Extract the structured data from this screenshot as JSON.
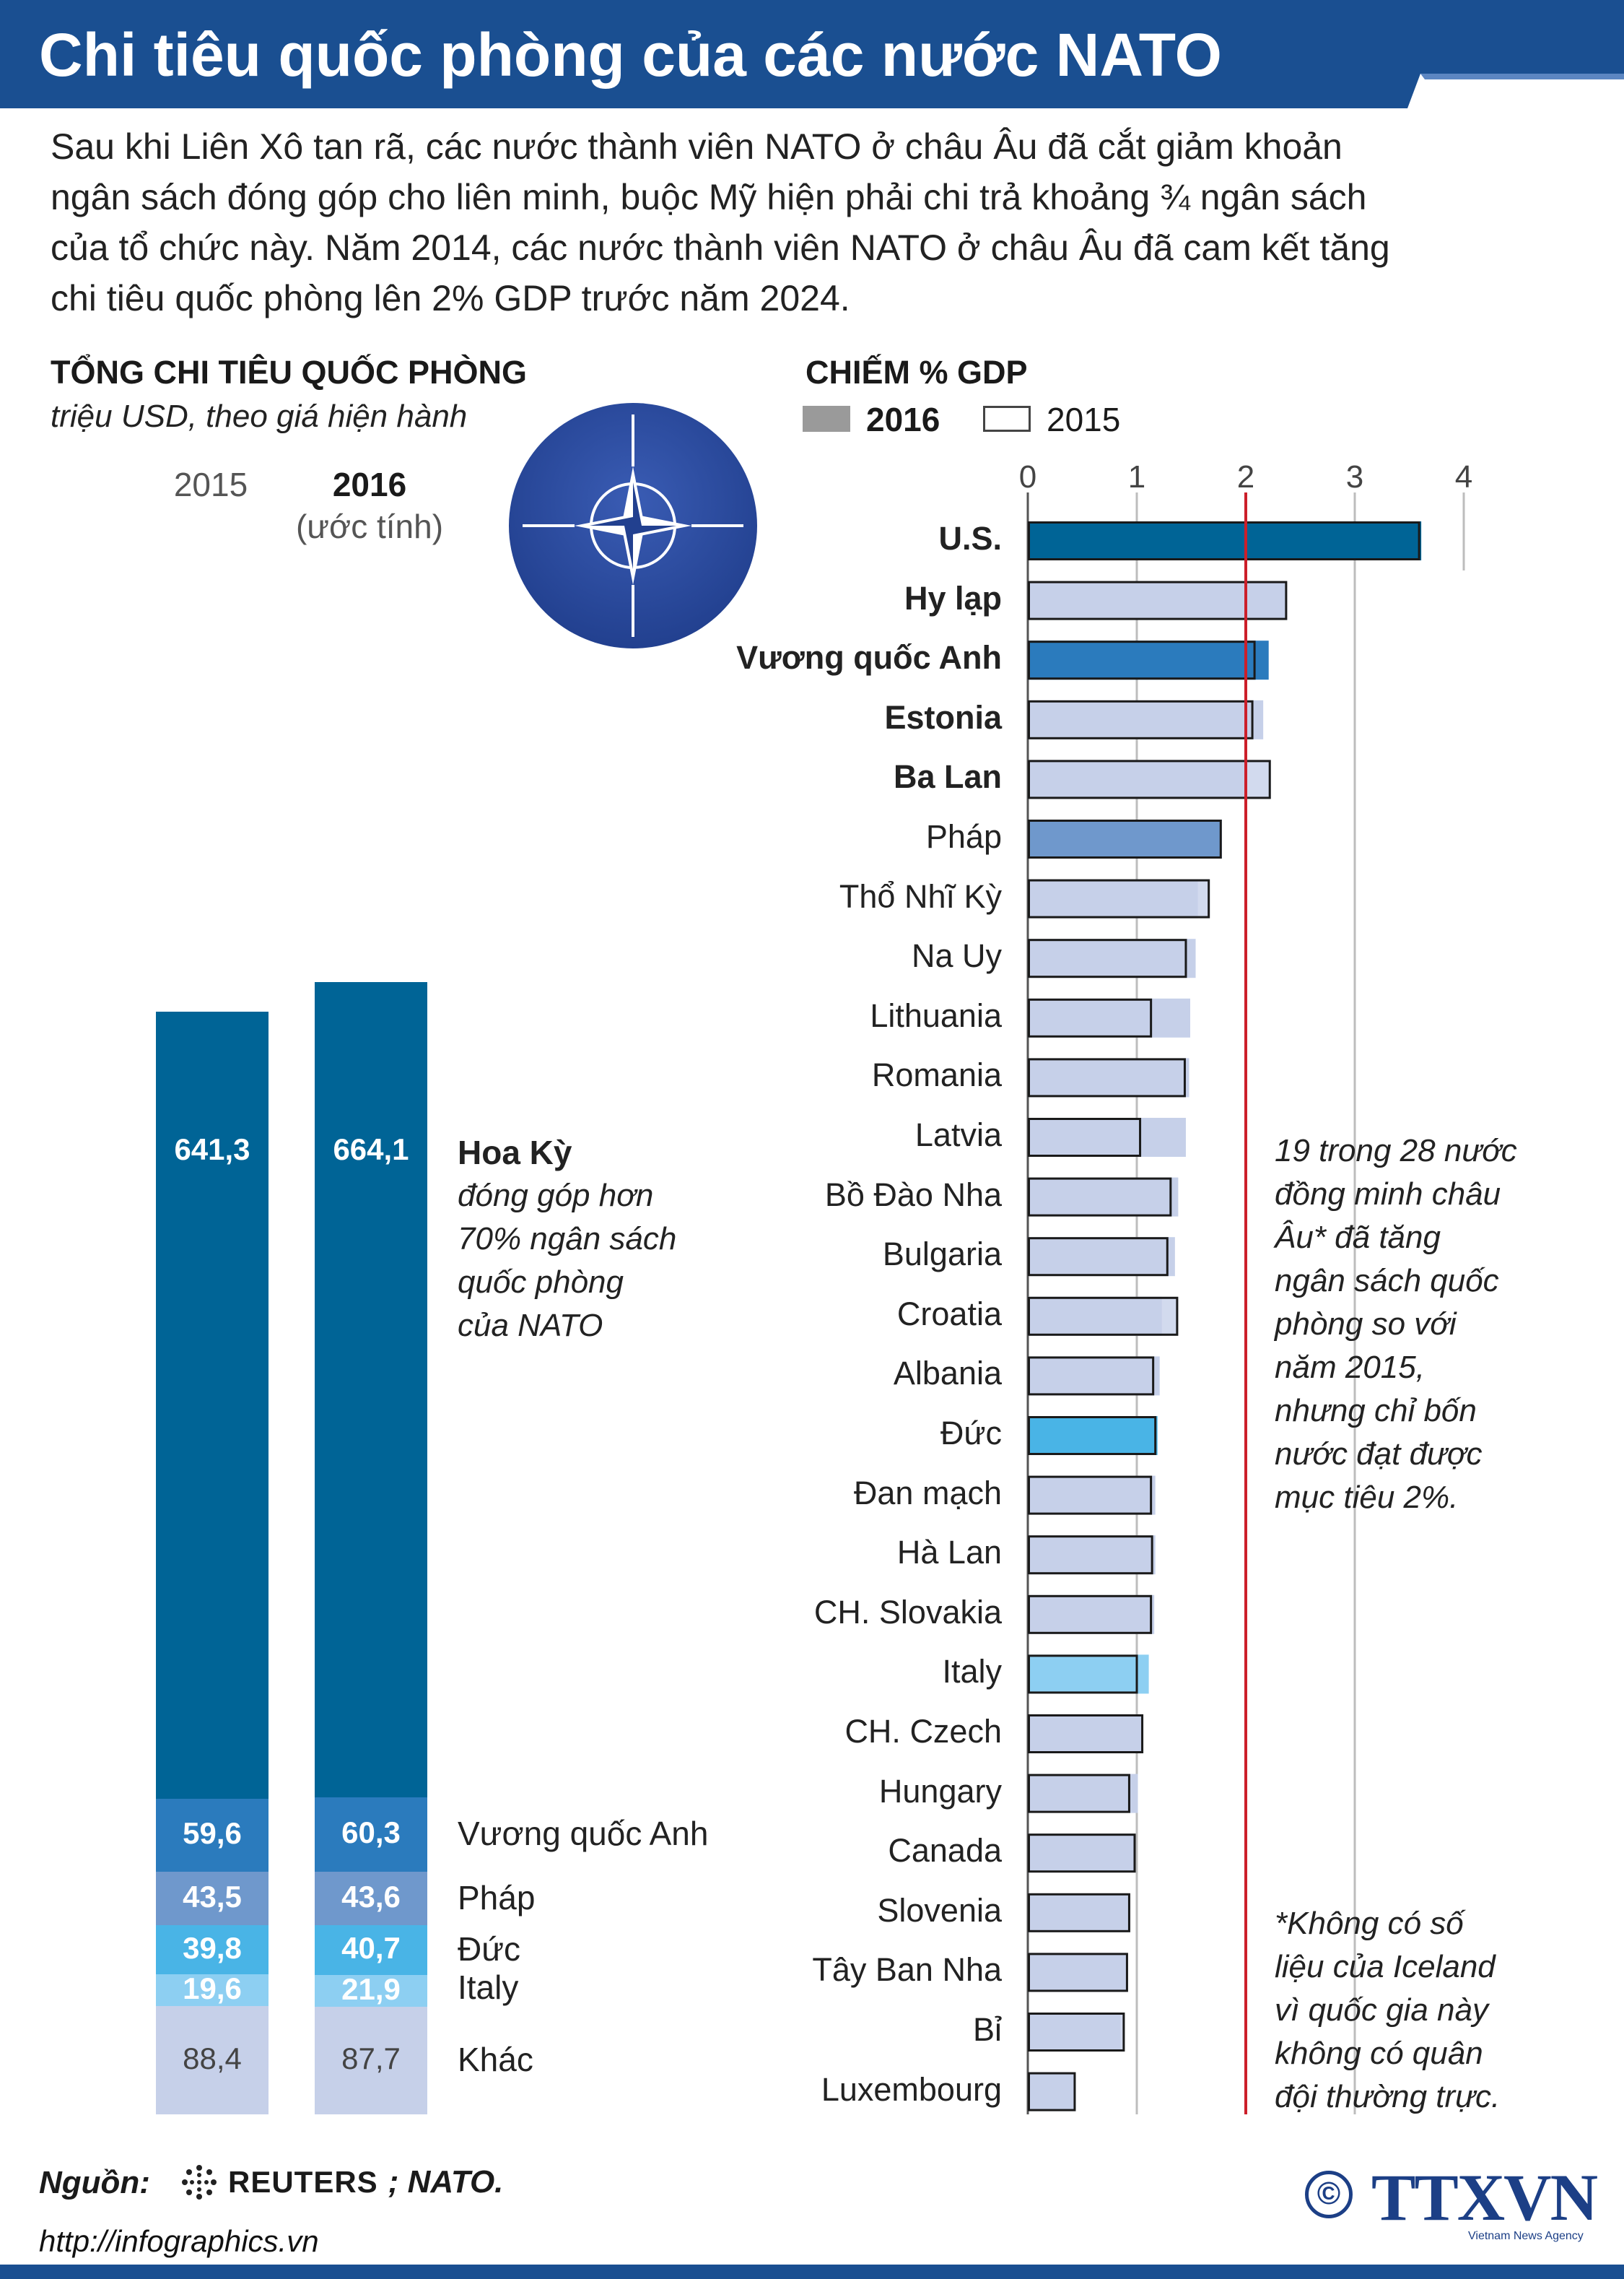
{
  "title": "Chi tiêu quốc phòng của các nước NATO",
  "intro_lines": [
    "Sau khi Liên Xô tan rã, các nước thành viên NATO ở châu Âu đã cắt giảm khoản",
    "ngân sách đóng góp cho liên minh, buộc Mỹ hiện phải chi trả khoảng ¾ ngân sách",
    "của tổ chức này. Năm 2014, các nước thành viên NATO ở châu Âu đã cam kết tăng",
    "chi tiêu quốc phòng lên 2% GDP trước năm 2024."
  ],
  "left_section": {
    "title": "TỔNG CHI TIÊU QUỐC PHÒNG",
    "subtitle": "triệu USD, theo giá hiện hành",
    "year_2015": "2015",
    "year_2016": "2016",
    "year_2016_note": "(ước tính)",
    "us_note_title": "Hoa Kỳ",
    "us_note_lines": [
      "đóng góp hơn",
      "70% ngân sách",
      "quốc phòng",
      "của NATO"
    ]
  },
  "right_section": {
    "title": "CHIẾM % GDP",
    "legend_2016": "2016",
    "legend_2015": "2015",
    "note_lines": [
      "19 trong 28 nước",
      "đồng minh châu",
      "Âu* đã tăng",
      "ngân sách quốc",
      "phòng so với",
      "năm 2015,",
      "nhưng chỉ bốn",
      "nước đạt được",
      "mục tiêu 2%."
    ],
    "footnote_lines": [
      "*Không có số",
      "liệu của Iceland",
      "vì quốc gia này",
      "không có quân",
      "đội thường trực."
    ]
  },
  "footer": {
    "source_label": "Nguồn:",
    "reuters": "REUTERS",
    "source_rest": "; NATO.",
    "url": "http://infographics.vn",
    "copyright": "©",
    "agency": "TTXVN",
    "agency_sub": "Vietnam News Agency"
  },
  "colors": {
    "title_band": "#1a4f91",
    "us_dark": "#006496",
    "uk": "#2b7bbd",
    "france": "#6f98cc",
    "germany": "#49b4e6",
    "italy": "#8dcff2",
    "other": "#c6d0e9",
    "target_line": "#cc1f2a",
    "ttxvn": "#1c3f86"
  },
  "chart_data": [
    {
      "type": "bar",
      "stacked": true,
      "title": "TỔNG CHI TIÊU QUỐC PHÒNG",
      "subtitle": "triệu USD, theo giá hiện hành",
      "categories": [
        "2015",
        "2016"
      ],
      "series": [
        {
          "name": "Hoa Kỳ",
          "values": [
            641.3,
            664.1
          ],
          "labels": [
            "641,3",
            "664,1"
          ],
          "color_key": "us_dark"
        },
        {
          "name": "Vương quốc Anh",
          "values": [
            59.6,
            60.3
          ],
          "labels": [
            "59,6",
            "60,3"
          ],
          "color_key": "uk"
        },
        {
          "name": "Pháp",
          "values": [
            43.5,
            43.6
          ],
          "labels": [
            "43,5",
            "43,6"
          ],
          "color_key": "france"
        },
        {
          "name": "Đức",
          "values": [
            39.8,
            40.7
          ],
          "labels": [
            "39,8",
            "40,7"
          ],
          "color_key": "germany"
        },
        {
          "name": "Italy",
          "values": [
            19.6,
            21.9
          ],
          "labels": [
            "19,6",
            "21,9"
          ],
          "color_key": "italy"
        },
        {
          "name": "Khác",
          "values": [
            88.4,
            87.7
          ],
          "labels": [
            "88,4",
            "87,7"
          ],
          "color_key": "other"
        }
      ]
    },
    {
      "type": "bar",
      "orientation": "horizontal",
      "title": "CHIẾM % GDP",
      "xlim": [
        0,
        4
      ],
      "xticks": [
        "0",
        "1",
        "2",
        "3",
        "4"
      ],
      "target": 2,
      "categories": [
        "U.S.",
        "Hy lạp",
        "Vương quốc Anh",
        "Estonia",
        "Ba Lan",
        "Pháp",
        "Thổ Nhĩ Kỳ",
        "Na Uy",
        "Lithuania",
        "Romania",
        "Latvia",
        "Bồ Đào Nha",
        "Bulgaria",
        "Croatia",
        "Albania",
        "Đức",
        "Đan mạch",
        "Hà Lan",
        "CH. Slovakia",
        "Italy",
        "CH. Czech",
        "Hungary",
        "Canada",
        "Slovenia",
        "Tây Ban Nha",
        "Bỉ",
        "Luxembourg"
      ],
      "bold_categories": [
        "U.S.",
        "Hy lạp",
        "Vương quốc Anh",
        "Estonia",
        "Ba Lan"
      ],
      "series": [
        {
          "name": "2016",
          "values": [
            3.61,
            2.38,
            2.21,
            2.16,
            2.0,
            1.78,
            1.56,
            1.54,
            1.49,
            1.48,
            1.45,
            1.38,
            1.35,
            1.23,
            1.21,
            1.19,
            1.17,
            1.17,
            1.16,
            1.11,
            1.04,
            1.01,
            0.99,
            0.94,
            0.91,
            0.85,
            0.44
          ]
        },
        {
          "name": "2015",
          "values": [
            3.6,
            2.38,
            2.09,
            2.07,
            2.23,
            1.78,
            1.67,
            1.46,
            1.14,
            1.45,
            1.04,
            1.32,
            1.29,
            1.38,
            1.16,
            1.18,
            1.14,
            1.15,
            1.14,
            1.01,
            1.06,
            0.94,
            0.99,
            0.94,
            0.92,
            0.89,
            0.44
          ]
        }
      ],
      "fill_color_keys": [
        "us_dark",
        "other",
        "uk",
        "other",
        "other",
        "france",
        "other",
        "other",
        "other",
        "other",
        "other",
        "other",
        "other",
        "other",
        "other",
        "germany",
        "other",
        "other",
        "other",
        "italy",
        "other",
        "other",
        "other",
        "other",
        "other",
        "other",
        "other"
      ]
    }
  ]
}
